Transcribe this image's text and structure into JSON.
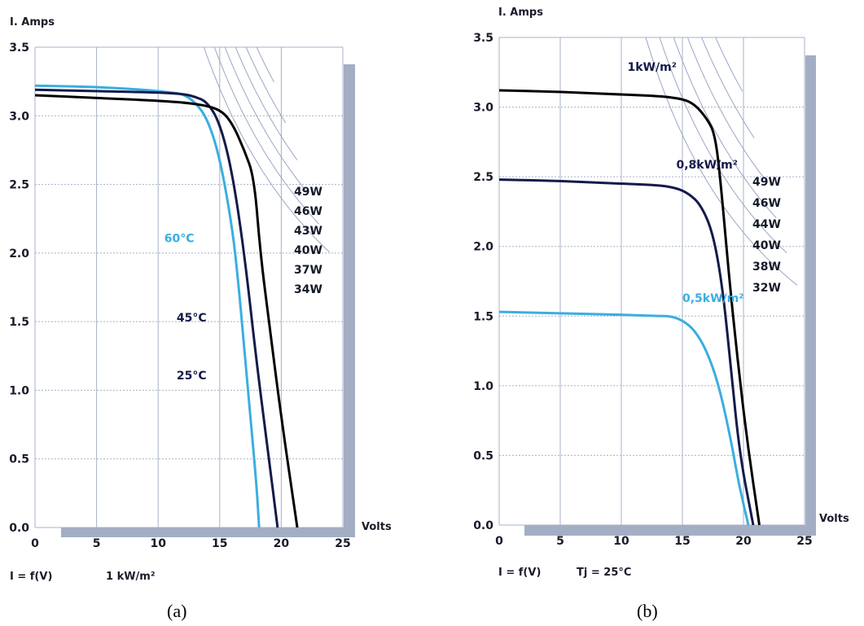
{
  "colors": {
    "grid": "#a8b0c8",
    "frame": "#a3aec4",
    "hyperbola": "#9aa6c4",
    "text": "#1a1a2a"
  },
  "chart_data": [
    {
      "type": "line",
      "panel_label": "(a)",
      "xlabel": "Volts",
      "ylabel": "I. Amps",
      "caption_left": "I = f(V)",
      "caption_right": "1 kW/m²",
      "xlim": [
        0,
        25
      ],
      "ylim": [
        0,
        3.5
      ],
      "xticks": [
        "0",
        "5",
        "10",
        "15",
        "20",
        "25"
      ],
      "yticks": [
        "0.0",
        "0.5",
        "1.0",
        "1.5",
        "2.0",
        "2.5",
        "3.0",
        "3.5"
      ],
      "grid": true,
      "power_curves": [
        "49W",
        "46W",
        "43W",
        "40W",
        "37W",
        "34W"
      ],
      "series": [
        {
          "name": "60°C",
          "color": "#3aaee0",
          "points": [
            [
              0,
              3.22
            ],
            [
              5,
              3.21
            ],
            [
              9,
              3.19
            ],
            [
              11,
              3.17
            ],
            [
              12,
              3.16
            ],
            [
              13,
              3.1
            ],
            [
              14,
              2.98
            ],
            [
              15,
              2.7
            ],
            [
              16,
              2.2
            ],
            [
              16.5,
              1.8
            ],
            [
              17,
              1.3
            ],
            [
              17.5,
              0.8
            ],
            [
              18,
              0.3
            ],
            [
              18.2,
              0
            ]
          ]
        },
        {
          "name": "45°C",
          "color": "#141a4a",
          "points": [
            [
              0,
              3.19
            ],
            [
              5,
              3.18
            ],
            [
              10,
              3.17
            ],
            [
              12,
              3.16
            ],
            [
              13,
              3.14
            ],
            [
              14,
              3.1
            ],
            [
              15,
              2.95
            ],
            [
              16,
              2.6
            ],
            [
              17,
              2.0
            ],
            [
              18,
              1.2
            ],
            [
              19,
              0.5
            ],
            [
              19.7,
              0
            ]
          ]
        },
        {
          "name": "25°C",
          "color": "#000000",
          "points": [
            [
              0,
              3.15
            ],
            [
              5,
              3.13
            ],
            [
              10,
              3.11
            ],
            [
              13,
              3.09
            ],
            [
              15,
              3.05
            ],
            [
              16,
              2.95
            ],
            [
              17,
              2.75
            ],
            [
              17.8,
              2.55
            ],
            [
              18.3,
              2.0
            ],
            [
              19,
              1.5
            ],
            [
              20,
              0.8
            ],
            [
              21.3,
              0
            ]
          ]
        }
      ],
      "labels": [
        {
          "text": "60°C",
          "x": 10.5,
          "y": 2.08,
          "color": "#3aaee0"
        },
        {
          "text": "45°C",
          "x": 11.5,
          "y": 1.5,
          "color": "#141a4a"
        },
        {
          "text": "25°C",
          "x": 11.5,
          "y": 1.08,
          "color": "#141a4a"
        }
      ]
    },
    {
      "type": "line",
      "panel_label": "(b)",
      "xlabel": "Volts",
      "ylabel": "I. Amps",
      "caption_left": "I = f(V)",
      "caption_right": "Tj = 25°C",
      "xlim": [
        0,
        25
      ],
      "ylim": [
        0,
        3.5
      ],
      "xticks": [
        "0",
        "5",
        "10",
        "15",
        "20",
        "25"
      ],
      "yticks": [
        "0.0",
        "0.5",
        "1.0",
        "1.5",
        "2.0",
        "2.5",
        "3.0",
        "3.5"
      ],
      "grid": true,
      "power_curves": [
        "49W",
        "46W",
        "44W",
        "40W",
        "38W",
        "32W"
      ],
      "series": [
        {
          "name": "1kW/m²",
          "color": "#000000",
          "points": [
            [
              0,
              3.12
            ],
            [
              5,
              3.11
            ],
            [
              10,
              3.09
            ],
            [
              13,
              3.08
            ],
            [
              15,
              3.06
            ],
            [
              16,
              3.02
            ],
            [
              17,
              2.92
            ],
            [
              17.7,
              2.8
            ],
            [
              18.2,
              2.4
            ],
            [
              18.8,
              1.8
            ],
            [
              19.5,
              1.2
            ],
            [
              20.3,
              0.6
            ],
            [
              21.3,
              0
            ]
          ]
        },
        {
          "name": "0,8kW/m²",
          "color": "#141a4a",
          "points": [
            [
              0,
              2.48
            ],
            [
              5,
              2.47
            ],
            [
              10,
              2.45
            ],
            [
              13,
              2.44
            ],
            [
              14.5,
              2.42
            ],
            [
              15.5,
              2.38
            ],
            [
              16.5,
              2.3
            ],
            [
              17.5,
              2.1
            ],
            [
              18.3,
              1.7
            ],
            [
              19,
              1.1
            ],
            [
              19.7,
              0.5
            ],
            [
              20.8,
              0
            ]
          ]
        },
        {
          "name": "0,5kW/m²",
          "color": "#3aaee0",
          "points": [
            [
              0,
              1.53
            ],
            [
              5,
              1.52
            ],
            [
              10,
              1.51
            ],
            [
              13,
              1.5
            ],
            [
              14,
              1.5
            ],
            [
              15,
              1.47
            ],
            [
              16,
              1.4
            ],
            [
              17,
              1.25
            ],
            [
              18,
              1.0
            ],
            [
              19,
              0.6
            ],
            [
              19.6,
              0.3
            ],
            [
              20.4,
              0
            ]
          ]
        }
      ],
      "labels": [
        {
          "text": "1kW/m²",
          "x": 10.5,
          "y": 3.26,
          "color": "#141a4a"
        },
        {
          "text": "0,8kW/m²",
          "x": 14.5,
          "y": 2.56,
          "color": "#141a4a"
        },
        {
          "text": "0,5kW/m²",
          "x": 15,
          "y": 1.6,
          "color": "#3aaee0"
        }
      ]
    }
  ]
}
